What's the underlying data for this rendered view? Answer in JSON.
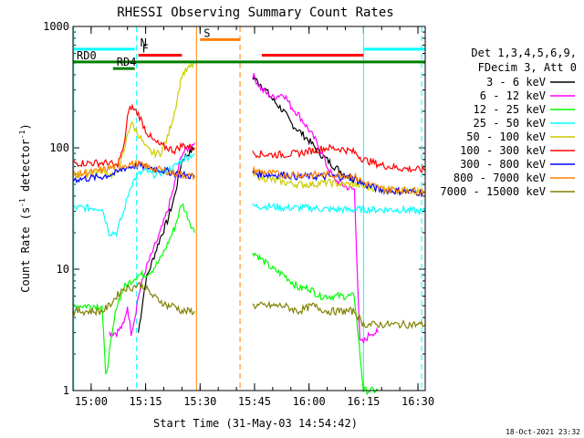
{
  "chart_data": {
    "type": "line",
    "title": "RHESSI Observing Summary Count Rates",
    "xlabel": "Start Time (31-May-03 14:54:42)",
    "ylabel_main": "Count Rate (s",
    "ylabel_sup1": "-1",
    "ylabel_mid": " detector",
    "ylabel_sup2": "-1",
    "ylabel_end": ")",
    "yscale": "log",
    "ylim": [
      1,
      1000
    ],
    "xlim_minutes": [
      0,
      97
    ],
    "x_tick_minutes": [
      5,
      20,
      35,
      50,
      65,
      80,
      95
    ],
    "x_tick_labels": [
      "15:00",
      "15:15",
      "15:30",
      "15:45",
      "16:00",
      "16:15",
      "16:30"
    ],
    "y_ticks": [
      1,
      10,
      100,
      1000
    ],
    "y_tick_labels": [
      "1",
      "10",
      "100",
      "1000"
    ],
    "legend_header": [
      "Det 1,3,4,5,6,9,",
      "FDecim 3, Att 0"
    ],
    "legend_placement": "right",
    "footer_date": "18-Oct-2021 23:32",
    "series": [
      {
        "name": "3 - 6 keV",
        "color": "#000000",
        "x": [
          18,
          20,
          22,
          24,
          26,
          28,
          30,
          33.5,
          49.5,
          52,
          55,
          58,
          60,
          62,
          65,
          68,
          72,
          75,
          77.5
        ],
        "y": [
          3,
          8,
          12,
          18,
          25,
          40,
          80,
          100,
          380,
          330,
          250,
          200,
          160,
          140,
          115,
          90,
          70,
          60,
          55
        ]
      },
      {
        "name": "6 - 12 keV",
        "color": "#ff00ff",
        "x": [
          10,
          12,
          14,
          15,
          16,
          17,
          18,
          20,
          22,
          24,
          26,
          28,
          30,
          33.5,
          49.5,
          52,
          55,
          58,
          60,
          62,
          65,
          68,
          70,
          72,
          75,
          77.5,
          79,
          80,
          82,
          84
        ],
        "y": [
          3,
          3,
          3.5,
          5,
          3,
          4,
          6,
          10,
          14,
          20,
          30,
          50,
          90,
          110,
          400,
          300,
          260,
          280,
          220,
          190,
          140,
          100,
          70,
          55,
          48,
          45,
          2.5,
          2.5,
          3,
          3
        ]
      },
      {
        "name": "12 - 25 keV",
        "color": "#00ff00",
        "x": [
          0,
          2,
          4,
          6,
          8,
          9,
          10,
          12,
          14,
          16,
          18,
          20,
          22,
          24,
          26,
          28,
          30,
          33.5,
          49.5,
          52,
          55,
          58,
          60,
          62,
          65,
          68,
          70,
          72,
          75,
          77.5,
          80,
          82,
          84
        ],
        "y": [
          5,
          5,
          5,
          5,
          5,
          1.3,
          2,
          5,
          7,
          8,
          9,
          9,
          10,
          12,
          16,
          22,
          35,
          20,
          14,
          12,
          10,
          9,
          8,
          7,
          7,
          6,
          6,
          6,
          6,
          6,
          1,
          1,
          1
        ]
      },
      {
        "name": "25 - 50 keV",
        "color": "#00ffff",
        "x": [
          0,
          4,
          8,
          10,
          12,
          14,
          16,
          18,
          20,
          22,
          24,
          26,
          28,
          30,
          33.5,
          49.5,
          54,
          58,
          62,
          66,
          70,
          74,
          77.5,
          80,
          85,
          90,
          95,
          97
        ],
        "y": [
          32,
          32,
          32,
          20,
          20,
          30,
          50,
          60,
          65,
          60,
          62,
          65,
          70,
          80,
          90,
          33,
          33,
          32,
          32,
          32,
          31,
          31,
          31,
          31,
          31,
          31,
          30,
          30
        ]
      },
      {
        "name": "50 - 100 keV",
        "color": "#cccc00",
        "x": [
          0,
          4,
          8,
          10,
          12,
          14,
          15,
          16,
          18,
          20,
          22,
          24,
          26,
          28,
          30,
          33.5,
          49.5,
          54,
          58,
          62,
          66,
          70,
          74,
          77.5,
          80,
          85,
          90,
          95,
          97
        ],
        "y": [
          60,
          62,
          65,
          60,
          60,
          90,
          130,
          160,
          130,
          100,
          90,
          90,
          120,
          200,
          400,
          500,
          60,
          55,
          52,
          50,
          50,
          52,
          50,
          50,
          48,
          46,
          44,
          43,
          43
        ]
      },
      {
        "name": "100 - 300 keV",
        "color": "#ff0000",
        "x": [
          0,
          4,
          8,
          10,
          12,
          14,
          15,
          16,
          18,
          20,
          22,
          24,
          26,
          28,
          30,
          33.5,
          49.5,
          54,
          58,
          62,
          66,
          70,
          74,
          77.5,
          80,
          85,
          90,
          95,
          97
        ],
        "y": [
          75,
          75,
          75,
          75,
          70,
          100,
          180,
          220,
          190,
          140,
          115,
          105,
          100,
          95,
          105,
          100,
          90,
          88,
          88,
          90,
          95,
          100,
          98,
          92,
          80,
          72,
          68,
          66,
          66
        ]
      },
      {
        "name": "300 - 800 keV",
        "color": "#0000ff",
        "x": [
          0,
          4,
          8,
          10,
          12,
          14,
          16,
          18,
          20,
          22,
          24,
          26,
          28,
          30,
          33.5,
          49.5,
          54,
          58,
          62,
          66,
          70,
          74,
          77.5,
          80,
          85,
          90,
          95,
          97
        ],
        "y": [
          55,
          56,
          58,
          60,
          62,
          68,
          70,
          72,
          70,
          68,
          66,
          64,
          62,
          60,
          58,
          62,
          60,
          60,
          58,
          58,
          58,
          58,
          56,
          50,
          45,
          44,
          43,
          43
        ]
      },
      {
        "name": "800 - 7000 keV",
        "color": "#ff8000",
        "x": [
          0,
          4,
          8,
          10,
          12,
          14,
          16,
          18,
          20,
          22,
          24,
          26,
          28,
          30,
          33.5,
          49.5,
          54,
          58,
          62,
          66,
          70,
          74,
          77.5,
          80,
          85,
          90,
          95,
          97
        ],
        "y": [
          60,
          62,
          65,
          68,
          70,
          72,
          74,
          73,
          70,
          68,
          66,
          64,
          62,
          60,
          58,
          65,
          62,
          60,
          60,
          60,
          60,
          60,
          58,
          52,
          46,
          45,
          44,
          44
        ]
      },
      {
        "name": "7000 - 15000 keV",
        "color": "#808000",
        "x": [
          0,
          4,
          8,
          10,
          12,
          14,
          16,
          18,
          20,
          22,
          24,
          26,
          28,
          30,
          33.5,
          49.5,
          54,
          58,
          62,
          66,
          70,
          74,
          77.5,
          80,
          85,
          90,
          95,
          97
        ],
        "y": [
          4.5,
          4.5,
          4.5,
          5,
          6,
          7,
          7,
          7.5,
          7,
          6,
          5.5,
          5,
          5,
          4.5,
          4.5,
          5,
          5,
          5,
          4.5,
          5,
          4.5,
          4.5,
          4.5,
          3.5,
          3.5,
          3.5,
          3.5,
          3.5
        ]
      }
    ],
    "bars": [
      {
        "label": "",
        "color": "#00ffff",
        "x0": 0,
        "x1": 17,
        "level": 650
      },
      {
        "label": "",
        "color": "#00ffff",
        "x0": 80,
        "x1": 97,
        "level": 650
      },
      {
        "label": "N",
        "color": "#00ffff",
        "x0": 18,
        "x1": 18,
        "level": 650
      },
      {
        "label": "F",
        "color": "#ff0000",
        "x0": 18,
        "x1": 30,
        "level": 580
      },
      {
        "label": "",
        "color": "#ff0000",
        "x0": 52,
        "x1": 80,
        "level": 580
      },
      {
        "label": "S",
        "color": "#ff8000",
        "x0": 35,
        "x1": 46,
        "level": 780
      },
      {
        "label": "RD0",
        "color": "#008000",
        "x0": 0,
        "x1": 97,
        "level": 510
      },
      {
        "label": "RD4",
        "color": "#008000",
        "x0": 11,
        "x1": 17,
        "level": 450
      }
    ],
    "vlines": [
      {
        "x": 0.2,
        "color": "#00ffff",
        "style": "solid"
      },
      {
        "x": 17.5,
        "color": "#00ffff",
        "style": "dashed"
      },
      {
        "x": 34,
        "color": "#ff8000",
        "style": "solid"
      },
      {
        "x": 46,
        "color": "#ff8000",
        "style": "dashed"
      },
      {
        "x": 80,
        "color": "#00ffff",
        "style": "solid"
      },
      {
        "x": 96,
        "color": "#00ffff",
        "style": "dashed"
      }
    ]
  }
}
